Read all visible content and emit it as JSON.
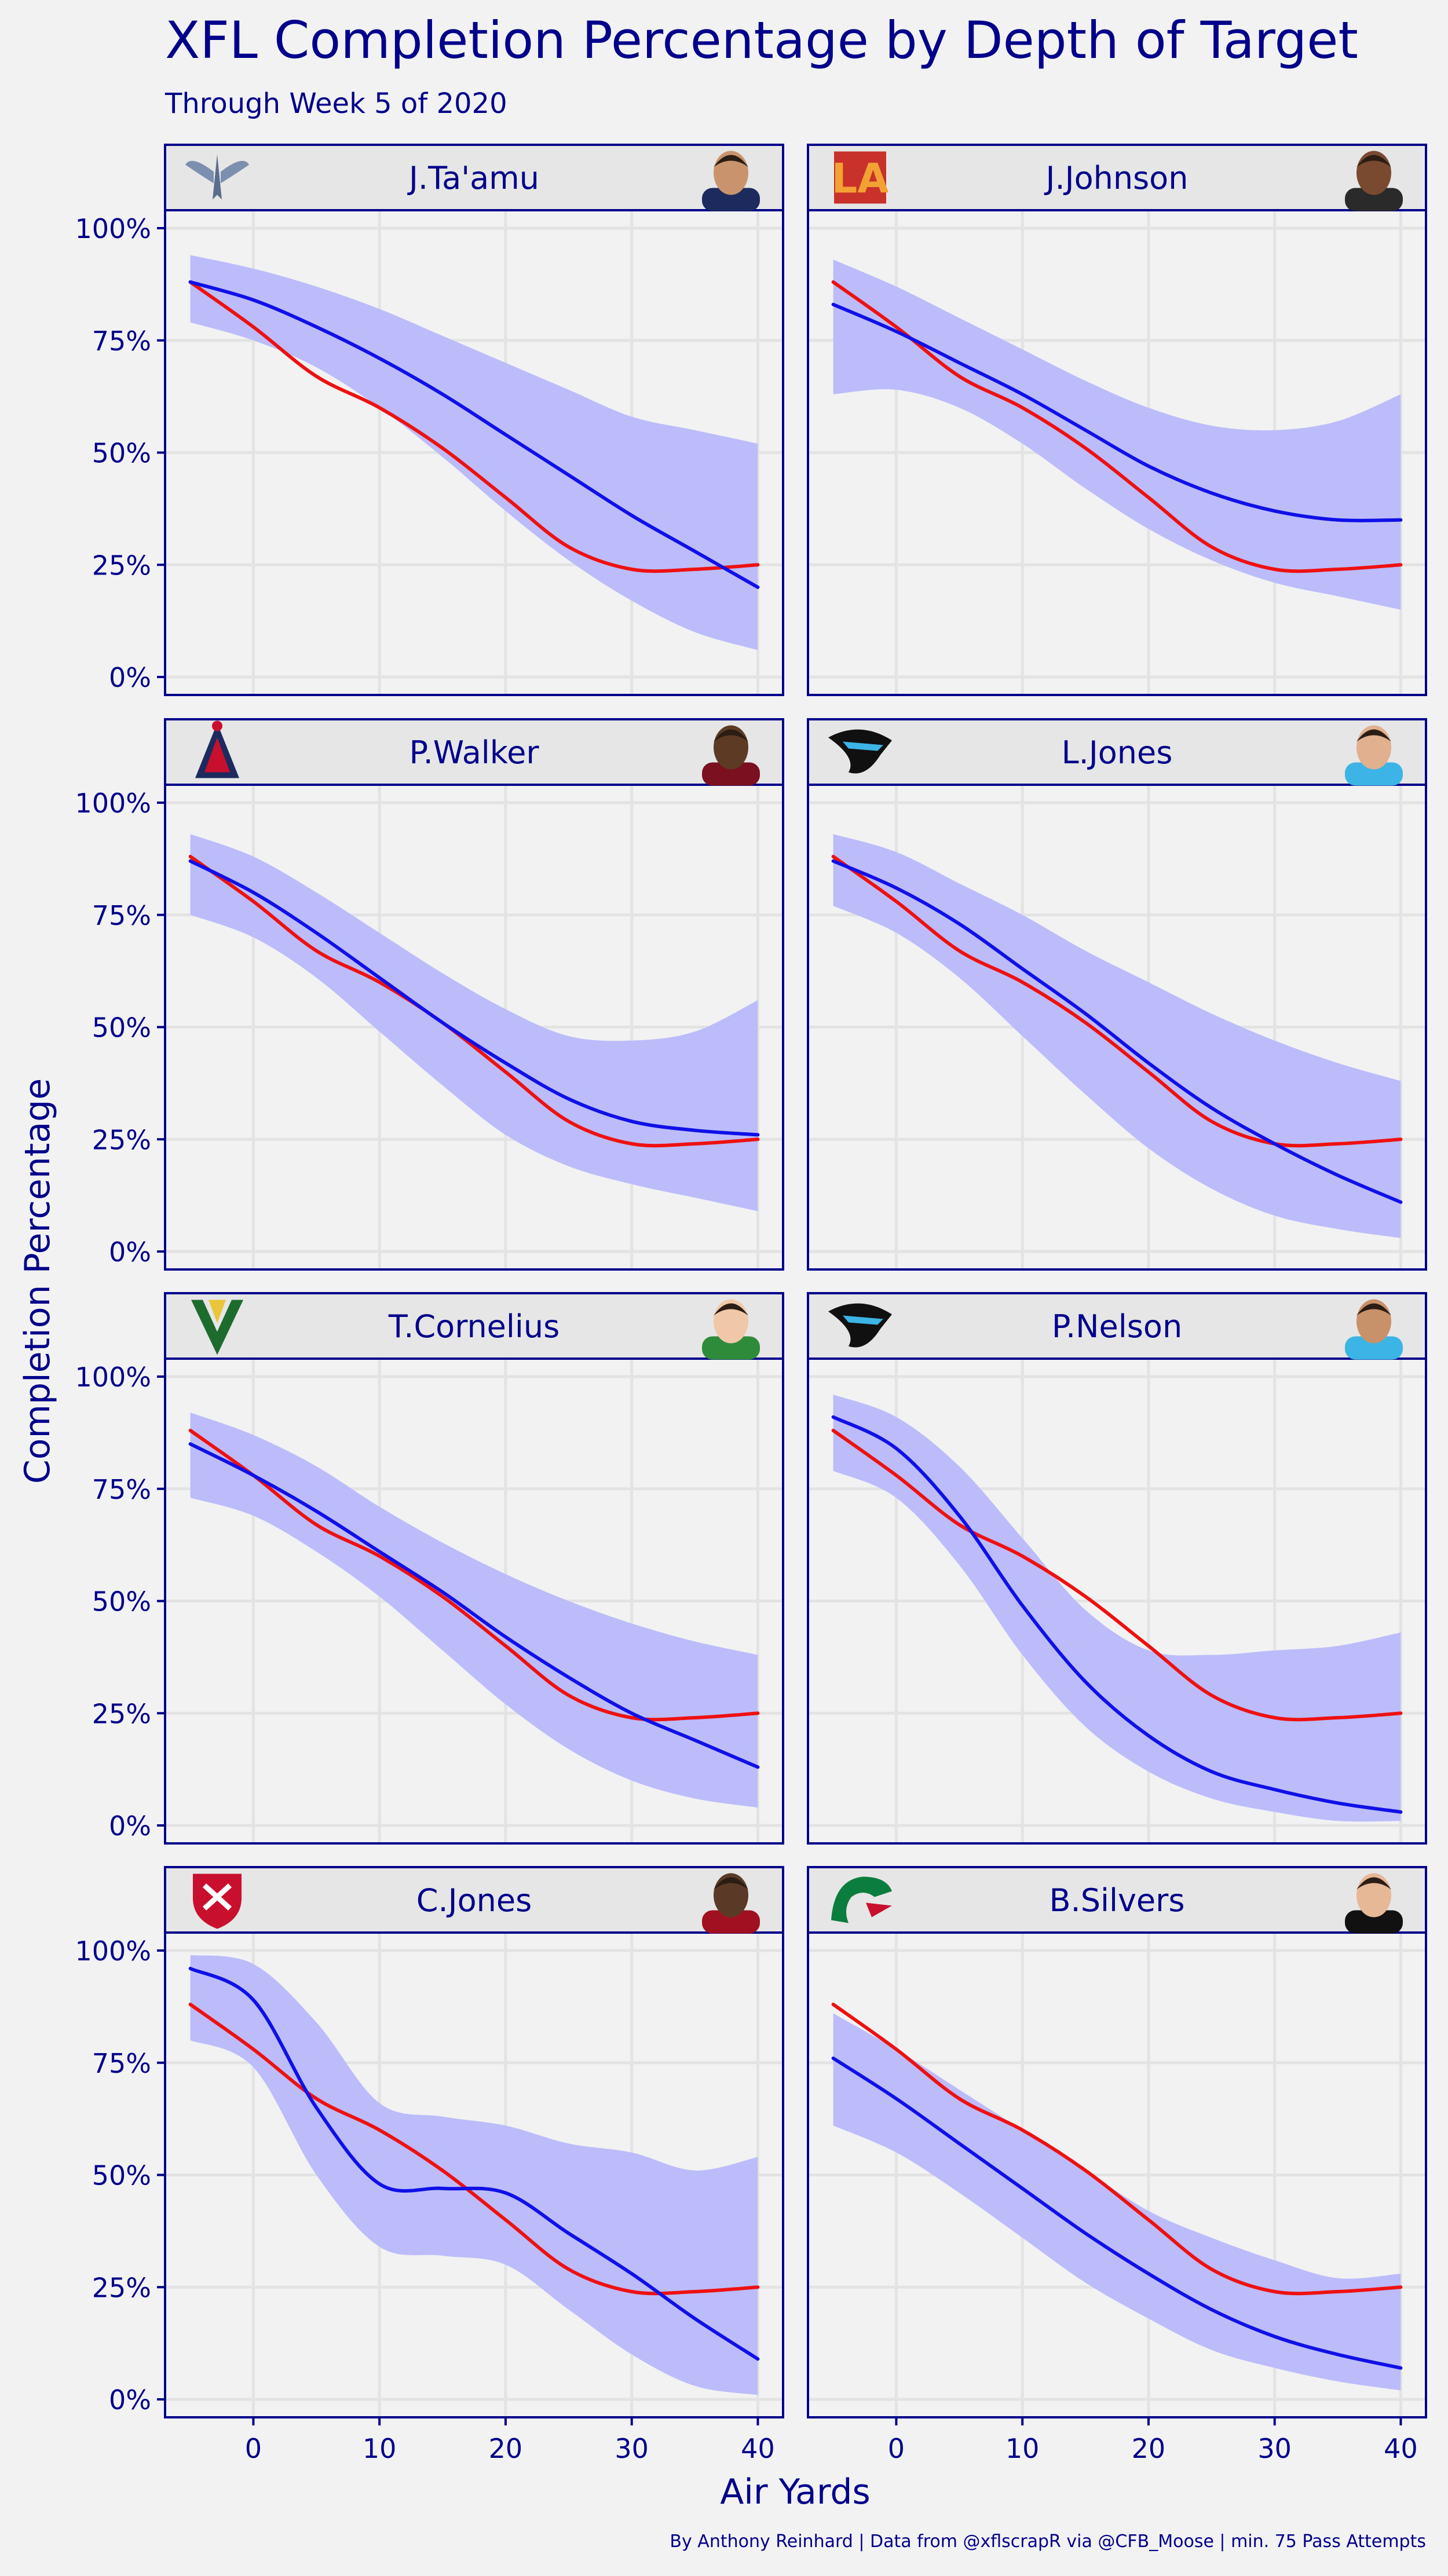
{
  "colors": {
    "background": "#f2f2f2",
    "text": "#00008b",
    "panel_border": "#00008b",
    "strip_fill": "#e6e6e6",
    "grid": "#e3e3e3",
    "player_line": "#1010e8",
    "band_fill": "#bcbcfb",
    "league_line": "#ee1111"
  },
  "chart_data": {
    "type": "line",
    "title": "XFL Completion Percentage by Depth of Target",
    "subtitle": "Through Week 5 of 2020",
    "xlabel": "Air Yards",
    "ylabel": "Completion Percentage",
    "caption": "By Anthony Reinhard  |  Data from @xflscrapR via @CFB_Moose  |  min. 75 Pass Attempts",
    "xlim": [
      -7,
      42
    ],
    "ylim": [
      -0.04,
      1.04
    ],
    "x_ticks": [
      0,
      10,
      20,
      30,
      40
    ],
    "x_tick_labels": [
      "0",
      "10",
      "20",
      "30",
      "40"
    ],
    "y_ticks": [
      0,
      0.25,
      0.5,
      0.75,
      1
    ],
    "y_tick_labels": [
      "0%",
      "25%",
      "50%",
      "75%",
      "100%"
    ],
    "grid": true,
    "x": [
      -5,
      0,
      5,
      10,
      15,
      20,
      25,
      30,
      35,
      40
    ],
    "league_average": [
      0.88,
      0.78,
      0.67,
      0.6,
      0.51,
      0.4,
      0.29,
      0.24,
      0.24,
      0.25
    ],
    "panels": [
      {
        "player": "J.Ta'amu",
        "team_logo_icon": "battlehawks-logo-icon",
        "headshot_icon": "player-headshot-icon",
        "values": [
          0.88,
          0.84,
          0.78,
          0.71,
          0.63,
          0.54,
          0.45,
          0.36,
          0.28,
          0.2
        ],
        "lower": [
          0.79,
          0.75,
          0.69,
          0.6,
          0.49,
          0.37,
          0.26,
          0.17,
          0.1,
          0.06
        ],
        "upper": [
          0.94,
          0.91,
          0.87,
          0.82,
          0.76,
          0.7,
          0.64,
          0.58,
          0.55,
          0.52
        ]
      },
      {
        "player": "J.Johnson",
        "team_logo_icon": "wildcats-logo-icon",
        "headshot_icon": "player-headshot-icon",
        "values": [
          0.83,
          0.77,
          0.7,
          0.63,
          0.55,
          0.47,
          0.41,
          0.37,
          0.35,
          0.35
        ],
        "lower": [
          0.63,
          0.64,
          0.6,
          0.52,
          0.42,
          0.33,
          0.26,
          0.21,
          0.18,
          0.15
        ],
        "upper": [
          0.93,
          0.87,
          0.8,
          0.73,
          0.66,
          0.6,
          0.56,
          0.55,
          0.57,
          0.63
        ]
      },
      {
        "player": "P.Walker",
        "team_logo_icon": "roughnecks-logo-icon",
        "headshot_icon": "player-headshot-icon",
        "values": [
          0.87,
          0.8,
          0.71,
          0.61,
          0.51,
          0.42,
          0.34,
          0.29,
          0.27,
          0.26
        ],
        "lower": [
          0.75,
          0.7,
          0.61,
          0.49,
          0.37,
          0.26,
          0.19,
          0.15,
          0.12,
          0.09
        ],
        "upper": [
          0.93,
          0.88,
          0.8,
          0.71,
          0.62,
          0.54,
          0.48,
          0.47,
          0.49,
          0.56
        ]
      },
      {
        "player": "L.Jones",
        "team_logo_icon": "renegades-logo-icon",
        "headshot_icon": "player-headshot-icon",
        "values": [
          0.87,
          0.81,
          0.73,
          0.63,
          0.53,
          0.42,
          0.32,
          0.24,
          0.17,
          0.11
        ],
        "lower": [
          0.77,
          0.71,
          0.61,
          0.48,
          0.35,
          0.23,
          0.14,
          0.08,
          0.05,
          0.03
        ],
        "upper": [
          0.93,
          0.89,
          0.82,
          0.75,
          0.67,
          0.6,
          0.53,
          0.47,
          0.42,
          0.38
        ]
      },
      {
        "player": "T.Cornelius",
        "team_logo_icon": "vipers-logo-icon",
        "headshot_icon": "player-headshot-icon",
        "values": [
          0.85,
          0.78,
          0.7,
          0.61,
          0.52,
          0.42,
          0.33,
          0.25,
          0.19,
          0.13
        ],
        "lower": [
          0.73,
          0.69,
          0.61,
          0.51,
          0.39,
          0.27,
          0.17,
          0.1,
          0.06,
          0.04
        ],
        "upper": [
          0.92,
          0.87,
          0.8,
          0.71,
          0.63,
          0.56,
          0.5,
          0.45,
          0.41,
          0.38
        ]
      },
      {
        "player": "P.Nelson",
        "team_logo_icon": "renegades-logo-icon",
        "headshot_icon": "player-headshot-icon",
        "values": [
          0.91,
          0.84,
          0.69,
          0.49,
          0.32,
          0.2,
          0.12,
          0.08,
          0.05,
          0.03
        ],
        "lower": [
          0.79,
          0.73,
          0.58,
          0.38,
          0.22,
          0.12,
          0.06,
          0.03,
          0.01,
          0.01
        ],
        "upper": [
          0.96,
          0.91,
          0.8,
          0.64,
          0.48,
          0.39,
          0.38,
          0.39,
          0.4,
          0.43
        ]
      },
      {
        "player": "C.Jones",
        "team_logo_icon": "defenders-logo-icon",
        "headshot_icon": "player-headshot-icon",
        "values": [
          0.96,
          0.89,
          0.65,
          0.48,
          0.47,
          0.46,
          0.37,
          0.28,
          0.18,
          0.09
        ],
        "lower": [
          0.8,
          0.74,
          0.5,
          0.34,
          0.32,
          0.3,
          0.2,
          0.1,
          0.03,
          0.01
        ],
        "upper": [
          0.99,
          0.97,
          0.84,
          0.66,
          0.63,
          0.61,
          0.57,
          0.55,
          0.51,
          0.54
        ]
      },
      {
        "player": "B.Silvers",
        "team_logo_icon": "dragons-logo-icon",
        "headshot_icon": "player-headshot-icon",
        "values": [
          0.76,
          0.67,
          0.57,
          0.47,
          0.37,
          0.28,
          0.2,
          0.14,
          0.1,
          0.07
        ],
        "lower": [
          0.61,
          0.55,
          0.46,
          0.36,
          0.26,
          0.18,
          0.11,
          0.07,
          0.04,
          0.02
        ],
        "upper": [
          0.86,
          0.78,
          0.69,
          0.6,
          0.51,
          0.42,
          0.36,
          0.31,
          0.27,
          0.28
        ]
      }
    ]
  }
}
